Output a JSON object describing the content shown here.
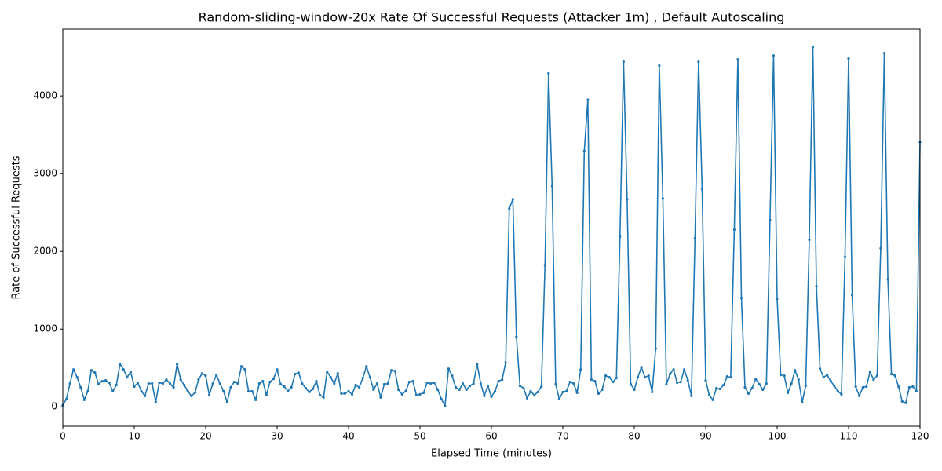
{
  "chart_data": {
    "type": "line",
    "title": "Random-sliding-window-20x Rate Of Successful Requests (Attacker 1m) , Default Autoscaling",
    "x_label": "Elapsed Time (minutes)",
    "y_label": "Rate of Successful Requests",
    "x": [
      0,
      0.5,
      1,
      1.5,
      2,
      2.5,
      3,
      3.5,
      4,
      4.5,
      5,
      5.5,
      6,
      6.5,
      7,
      7.5,
      8,
      8.5,
      9,
      9.5,
      10,
      10.5,
      11,
      11.5,
      12,
      12.5,
      13,
      13.5,
      14,
      14.5,
      15,
      15.5,
      16,
      16.5,
      17,
      17.5,
      18,
      18.5,
      19,
      19.5,
      20,
      20.5,
      21,
      21.5,
      22,
      22.5,
      23,
      23.5,
      24,
      24.5,
      25,
      25.5,
      26,
      26.5,
      27,
      27.5,
      28,
      28.5,
      29,
      29.5,
      30,
      30.5,
      31,
      31.5,
      32,
      32.5,
      33,
      33.5,
      34,
      34.5,
      35,
      35.5,
      36,
      36.5,
      37,
      37.5,
      38,
      38.5,
      39,
      39.5,
      40,
      40.5,
      41,
      41.5,
      42,
      42.5,
      43,
      43.5,
      44,
      44.5,
      45,
      45.5,
      46,
      46.5,
      47,
      47.5,
      48,
      48.5,
      49,
      49.5,
      50,
      50.5,
      51,
      51.5,
      52,
      52.5,
      53,
      53.5,
      54,
      54.5,
      55,
      55.5,
      56,
      56.5,
      57,
      57.5,
      58,
      58.5,
      59,
      59.5,
      60,
      60.5,
      61,
      61.5,
      62,
      62.5,
      63,
      63.5,
      64,
      64.5,
      65,
      65.5,
      66,
      66.5,
      67,
      67.5,
      68,
      68.5,
      69,
      69.5,
      70,
      70.5,
      71,
      71.5,
      72,
      72.5,
      73,
      73.5,
      74,
      74.5,
      75,
      75.5,
      76,
      76.5,
      77,
      77.5,
      78,
      78.5,
      79,
      79.5,
      80,
      80.5,
      81,
      81.5,
      82,
      82.5,
      83,
      83.5,
      84,
      84.5,
      85,
      85.5,
      86,
      86.5,
      87,
      87.5,
      88,
      88.5,
      89,
      89.5,
      90,
      90.5,
      91,
      91.5,
      92,
      92.5,
      93,
      93.5,
      94,
      94.5,
      95,
      95.5,
      96,
      96.5,
      97,
      97.5,
      98,
      98.5,
      99,
      99.5,
      100,
      100.5,
      101,
      101.5,
      102,
      102.5,
      103,
      103.5,
      104,
      104.5,
      105,
      105.5,
      106,
      106.5,
      107,
      107.5,
      108,
      108.5,
      109,
      109.5,
      110,
      110.5,
      111,
      111.5,
      112,
      112.5,
      113,
      113.5,
      114,
      114.5,
      115,
      115.5,
      116,
      116.5,
      117,
      117.5,
      118,
      118.5,
      119,
      119.5,
      120
    ],
    "series": [
      {
        "color": "#1f77b4",
        "values": [
          20,
          100,
          300,
          480,
          380,
          250,
          90,
          200,
          470,
          440,
          290,
          330,
          340,
          310,
          200,
          280,
          550,
          480,
          380,
          450,
          260,
          310,
          200,
          140,
          300,
          300,
          60,
          310,
          300,
          350,
          300,
          250,
          550,
          350,
          280,
          200,
          140,
          180,
          350,
          430,
          400,
          150,
          300,
          410,
          300,
          200,
          60,
          250,
          320,
          300,
          520,
          480,
          200,
          200,
          90,
          300,
          330,
          150,
          320,
          360,
          480,
          290,
          260,
          200,
          250,
          420,
          440,
          300,
          240,
          190,
          230,
          330,
          150,
          120,
          450,
          380,
          300,
          430,
          170,
          170,
          200,
          160,
          280,
          250,
          370,
          520,
          380,
          220,
          300,
          120,
          290,
          300,
          470,
          460,
          220,
          160,
          200,
          320,
          330,
          150,
          160,
          180,
          310,
          300,
          310,
          220,
          100,
          10,
          490,
          400,
          250,
          220,
          300,
          220,
          270,
          300,
          550,
          300,
          140,
          270,
          130,
          200,
          330,
          350,
          570,
          2550,
          2670,
          900,
          270,
          240,
          110,
          200,
          150,
          190,
          260,
          1820,
          4290,
          2840,
          290,
          100,
          190,
          200,
          320,
          300,
          180,
          480,
          3290,
          3950,
          350,
          330,
          170,
          220,
          400,
          380,
          320,
          370,
          2190,
          4440,
          2670,
          290,
          220,
          380,
          510,
          380,
          400,
          190,
          750,
          4390,
          2680,
          290,
          420,
          480,
          310,
          320,
          480,
          340,
          140,
          2170,
          4440,
          2800,
          340,
          150,
          90,
          240,
          230,
          280,
          390,
          380,
          2280,
          4470,
          1400,
          250,
          170,
          240,
          360,
          290,
          220,
          300,
          2400,
          4520,
          1390,
          410,
          400,
          180,
          300,
          470,
          350,
          60,
          270,
          2150,
          4630,
          1550,
          490,
          380,
          410,
          330,
          270,
          200,
          160,
          1930,
          4480,
          1440,
          260,
          140,
          250,
          260,
          450,
          350,
          400,
          2040,
          4550,
          1640,
          420,
          400,
          260,
          70,
          50,
          250,
          260,
          200,
          3410
        ]
      }
    ],
    "xlim": [
      0,
      120
    ],
    "ylim": [
      -250,
      4860
    ],
    "xticks": [
      0,
      10,
      20,
      30,
      40,
      50,
      60,
      70,
      80,
      90,
      100,
      110,
      120
    ],
    "yticks": [
      0,
      1000,
      2000,
      3000,
      4000
    ],
    "grid": false,
    "markers": true
  }
}
